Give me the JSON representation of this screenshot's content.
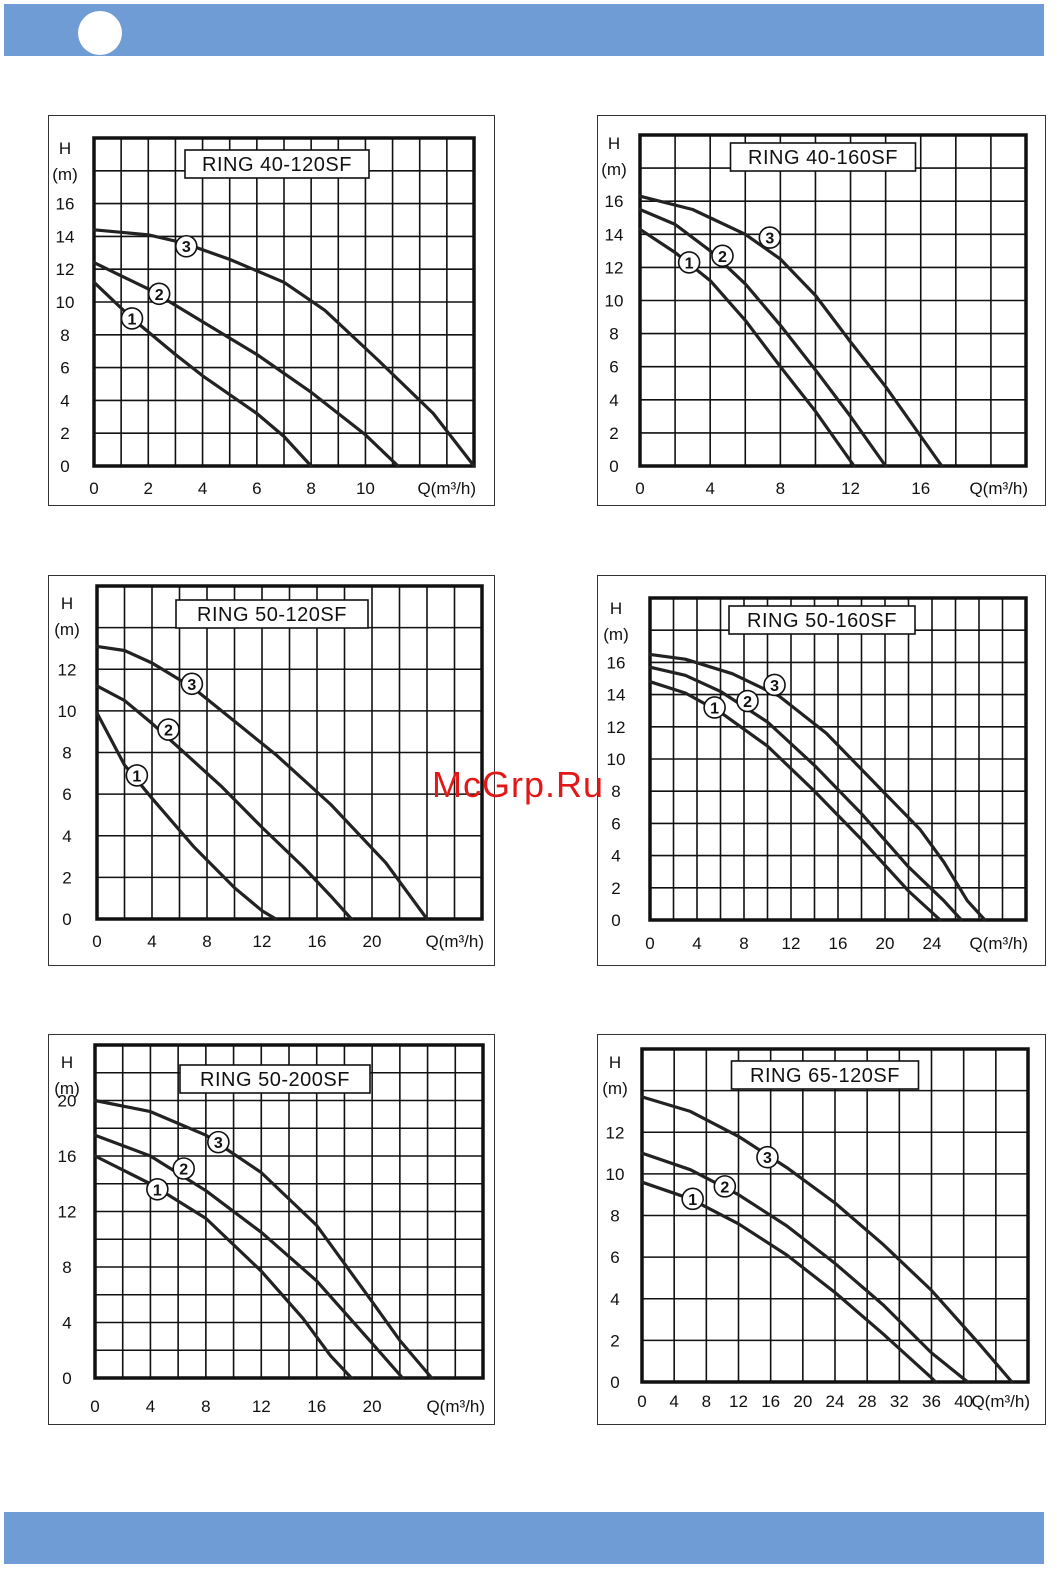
{
  "header": {
    "bar_color": "#6f9cd4"
  },
  "watermark": "McGrp.Ru",
  "chart_data": [
    {
      "type": "line",
      "title": "RING 40-120SF",
      "xlabel": "Q(m³/h)",
      "ylabel": "H",
      "yunit": "(m)",
      "xlim": [
        0,
        14
      ],
      "ylim": [
        0,
        20
      ],
      "xticks": [
        "0",
        "2",
        "4",
        "6",
        "8",
        "10"
      ],
      "xtick_values": [
        0,
        2,
        4,
        6,
        8,
        10
      ],
      "yticks": [
        "0",
        "2",
        "4",
        "6",
        "8",
        "10",
        "12",
        "14",
        "16"
      ],
      "ytick_values": [
        0,
        2,
        4,
        6,
        8,
        10,
        12,
        14,
        16
      ],
      "grid": true,
      "series": [
        {
          "name": "1",
          "x": [
            0,
            1.4,
            3,
            4,
            6,
            7,
            8
          ],
          "y": [
            11.2,
            9,
            6.8,
            5.5,
            3.2,
            1.8,
            0
          ]
        },
        {
          "name": "2",
          "x": [
            0,
            1,
            2,
            4,
            6,
            8,
            10,
            11.2
          ],
          "y": [
            12.4,
            11.6,
            10.8,
            8.8,
            6.8,
            4.5,
            1.9,
            0
          ]
        },
        {
          "name": "3",
          "x": [
            0,
            2,
            3.3,
            5,
            7,
            8.5,
            10.5,
            12.5,
            14
          ],
          "y": [
            14.4,
            14.1,
            13.6,
            12.6,
            11.2,
            9.5,
            6.4,
            3.2,
            0
          ]
        }
      ],
      "label_points": [
        {
          "label": "1",
          "x": 1.4,
          "y": 9
        },
        {
          "label": "2",
          "x": 2.4,
          "y": 10.5
        },
        {
          "label": "3",
          "x": 3.4,
          "y": 13.4
        }
      ]
    },
    {
      "type": "line",
      "title": "RING 40-160SF",
      "xlabel": "Q(m³/h)",
      "ylabel": "H",
      "yunit": "(m)",
      "xlim": [
        0,
        22
      ],
      "ylim": [
        0,
        20
      ],
      "xticks": [
        "0",
        "4",
        "8",
        "12",
        "16"
      ],
      "xtick_values": [
        0,
        4,
        8,
        12,
        16
      ],
      "yticks": [
        "0",
        "2",
        "4",
        "6",
        "8",
        "10",
        "12",
        "14",
        "16"
      ],
      "ytick_values": [
        0,
        2,
        4,
        6,
        8,
        10,
        12,
        14,
        16
      ],
      "grid": true,
      "series": [
        {
          "name": "1",
          "x": [
            0,
            2,
            4,
            6,
            8,
            10,
            12.2
          ],
          "y": [
            14.3,
            12.9,
            11.2,
            8.8,
            6.0,
            3.3,
            0
          ]
        },
        {
          "name": "2",
          "x": [
            0,
            2,
            4,
            6,
            8,
            10,
            12,
            14
          ],
          "y": [
            15.5,
            14.6,
            13.0,
            11.0,
            8.5,
            5.8,
            3.0,
            0
          ]
        },
        {
          "name": "3",
          "x": [
            0,
            3,
            6,
            8,
            10,
            12,
            14,
            17.2
          ],
          "y": [
            16.3,
            15.5,
            14.0,
            12.5,
            10.3,
            7.5,
            4.8,
            0
          ]
        }
      ],
      "label_points": [
        {
          "label": "1",
          "x": 2.8,
          "y": 12.3
        },
        {
          "label": "2",
          "x": 4.7,
          "y": 12.7
        },
        {
          "label": "3",
          "x": 7.4,
          "y": 13.8
        }
      ]
    },
    {
      "type": "line",
      "title": "RING 50-120SF",
      "xlabel": "Q(m³/h)",
      "ylabel": "H",
      "yunit": "(m)",
      "xlim": [
        0,
        28
      ],
      "ylim": [
        0,
        16
      ],
      "xticks": [
        "0",
        "4",
        "8",
        "12",
        "16",
        "20"
      ],
      "xtick_values": [
        0,
        4,
        8,
        12,
        16,
        20
      ],
      "yticks": [
        "0",
        "2",
        "4",
        "6",
        "8",
        "10",
        "12"
      ],
      "ytick_values": [
        0,
        2,
        4,
        6,
        8,
        10,
        12
      ],
      "grid": true,
      "series": [
        {
          "name": "1",
          "x": [
            0,
            2,
            4,
            7,
            10,
            12,
            13
          ],
          "y": [
            9.9,
            7.4,
            5.8,
            3.5,
            1.5,
            0.4,
            0
          ]
        },
        {
          "name": "2",
          "x": [
            0,
            2,
            4,
            6,
            9,
            12,
            15,
            17,
            18.5
          ],
          "y": [
            11.2,
            10.5,
            9.4,
            8.2,
            6.4,
            4.4,
            2.5,
            1.1,
            0
          ]
        },
        {
          "name": "3",
          "x": [
            0,
            2,
            4,
            7,
            10,
            13,
            17,
            21,
            24
          ],
          "y": [
            13.1,
            12.9,
            12.3,
            11.1,
            9.5,
            7.9,
            5.5,
            2.7,
            0
          ]
        }
      ],
      "label_points": [
        {
          "label": "1",
          "x": 2.9,
          "y": 6.9
        },
        {
          "label": "2",
          "x": 5.2,
          "y": 9.1
        },
        {
          "label": "3",
          "x": 6.9,
          "y": 11.3
        }
      ]
    },
    {
      "type": "line",
      "title": "RING 50-160SF",
      "xlabel": "Q(m³/h)",
      "ylabel": "H",
      "yunit": "(m)",
      "xlim": [
        0,
        32
      ],
      "ylim": [
        0,
        20
      ],
      "xticks": [
        "0",
        "4",
        "8",
        "12",
        "16",
        "20",
        "24"
      ],
      "xtick_values": [
        0,
        4,
        8,
        12,
        16,
        20,
        24
      ],
      "yticks": [
        "0",
        "2",
        "4",
        "6",
        "8",
        "10",
        "12",
        "14",
        "16"
      ],
      "ytick_values": [
        0,
        2,
        4,
        6,
        8,
        10,
        12,
        14,
        16
      ],
      "grid": true,
      "series": [
        {
          "name": "1",
          "x": [
            0,
            3,
            6,
            10,
            14,
            18,
            22,
            24.7
          ],
          "y": [
            14.8,
            14.1,
            12.9,
            10.8,
            8.0,
            5.0,
            1.8,
            0
          ]
        },
        {
          "name": "2",
          "x": [
            0,
            3,
            6,
            10,
            14,
            18,
            22,
            25,
            26.5
          ],
          "y": [
            15.7,
            15.2,
            14.2,
            12.3,
            9.6,
            6.6,
            3.3,
            1.2,
            0
          ]
        },
        {
          "name": "3",
          "x": [
            0,
            3,
            7,
            11,
            15,
            19,
            23,
            25,
            27,
            28.5
          ],
          "y": [
            16.5,
            16.2,
            15.3,
            13.9,
            11.6,
            8.6,
            5.6,
            3.6,
            1.2,
            0
          ]
        }
      ],
      "label_points": [
        {
          "label": "1",
          "x": 5.5,
          "y": 13.2
        },
        {
          "label": "2",
          "x": 8.3,
          "y": 13.6
        },
        {
          "label": "3",
          "x": 10.6,
          "y": 14.6
        }
      ]
    },
    {
      "type": "line",
      "title": "RING 50-200SF",
      "xlabel": "Q(m³/h)",
      "ylabel": "H",
      "yunit": "(m)",
      "xlim": [
        0,
        28
      ],
      "ylim": [
        0,
        24
      ],
      "xticks": [
        "0",
        "4",
        "8",
        "12",
        "16",
        "20"
      ],
      "xtick_values": [
        0,
        4,
        8,
        12,
        16,
        20
      ],
      "yticks": [
        "0",
        "4",
        "8",
        "12",
        "16",
        "20"
      ],
      "ytick_values": [
        0,
        4,
        8,
        12,
        16,
        20
      ],
      "grid": true,
      "series": [
        {
          "name": "1",
          "x": [
            0,
            4,
            8,
            12,
            15,
            17,
            18.5
          ],
          "y": [
            16,
            14.0,
            11.5,
            7.7,
            4.3,
            1.6,
            0
          ]
        },
        {
          "name": "2",
          "x": [
            0,
            4,
            8,
            12,
            16,
            20,
            22.2
          ],
          "y": [
            17.5,
            16.0,
            13.5,
            10.5,
            7.0,
            2.5,
            0
          ]
        },
        {
          "name": "3",
          "x": [
            0,
            4,
            8,
            12,
            16,
            20,
            22,
            24.3
          ],
          "y": [
            20,
            19.2,
            17.5,
            14.8,
            11.0,
            5.5,
            2.7,
            0
          ]
        }
      ],
      "label_points": [
        {
          "label": "1",
          "x": 4.5,
          "y": 13.6
        },
        {
          "label": "2",
          "x": 6.4,
          "y": 15.1
        },
        {
          "label": "3",
          "x": 8.9,
          "y": 17.0
        }
      ]
    },
    {
      "type": "line",
      "title": "RING 65-120SF",
      "xlabel": "Q(m³/h)",
      "ylabel": "H",
      "yunit": "(m)",
      "xlim": [
        0,
        48
      ],
      "ylim": [
        0,
        16
      ],
      "xticks": [
        "0",
        "4",
        "8",
        "12",
        "16",
        "20",
        "24",
        "28",
        "32",
        "36",
        "40"
      ],
      "xtick_values": [
        0,
        4,
        8,
        12,
        16,
        20,
        24,
        28,
        32,
        36,
        40
      ],
      "yticks": [
        "0",
        "2",
        "4",
        "6",
        "8",
        "10",
        "12"
      ],
      "ytick_values": [
        0,
        2,
        4,
        6,
        8,
        10,
        12
      ],
      "grid": true,
      "series": [
        {
          "name": "1",
          "x": [
            0,
            6,
            12,
            18,
            24,
            30,
            36,
            36.5
          ],
          "y": [
            9.6,
            8.8,
            7.6,
            6.1,
            4.3,
            2.3,
            0.2,
            0
          ]
        },
        {
          "name": "2",
          "x": [
            0,
            6,
            12,
            18,
            24,
            30,
            36,
            40.5
          ],
          "y": [
            11,
            10.2,
            9.0,
            7.5,
            5.7,
            3.7,
            1.4,
            0
          ]
        },
        {
          "name": "3",
          "x": [
            0,
            6,
            12,
            18,
            24,
            30,
            36,
            42,
            46
          ],
          "y": [
            13.7,
            13.0,
            11.8,
            10.3,
            8.6,
            6.6,
            4.4,
            1.8,
            0
          ]
        }
      ],
      "label_points": [
        {
          "label": "1",
          "x": 6.3,
          "y": 8.8
        },
        {
          "label": "2",
          "x": 10.3,
          "y": 9.4
        },
        {
          "label": "3",
          "x": 15.6,
          "y": 10.8
        }
      ]
    }
  ]
}
